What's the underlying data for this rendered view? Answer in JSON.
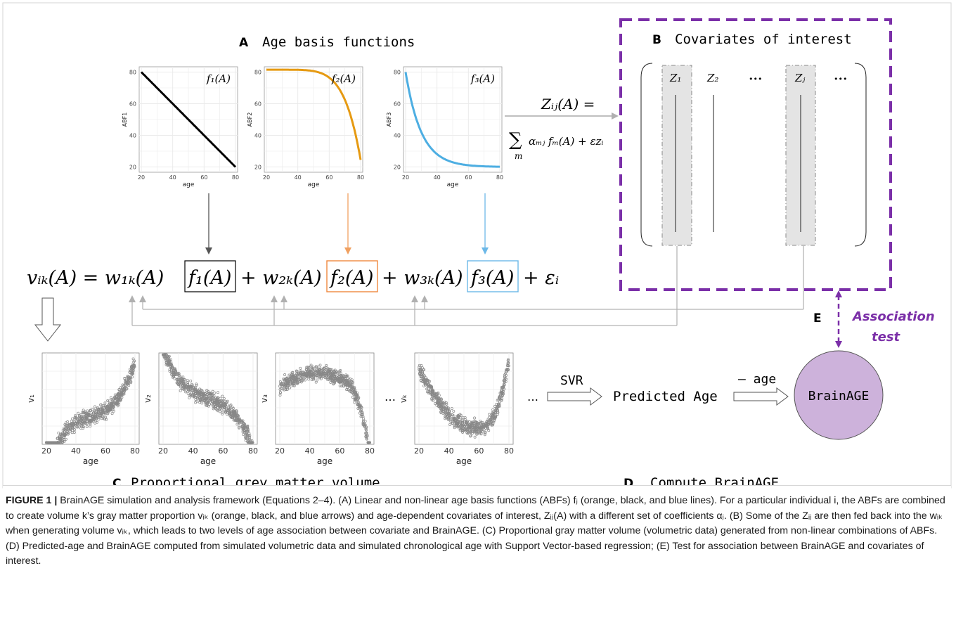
{
  "panel_titles": {
    "A_letter": "A",
    "A_text": "Age basis functions",
    "B_letter": "B",
    "B_text": "Covariates of interest",
    "C_letter": "C",
    "C_text": "Proportional grey matter volume",
    "D_letter": "D",
    "D_text": "Compute BrainAGE",
    "E_letter": "E"
  },
  "abf_plots": [
    {
      "ylabel": "ABF1",
      "fn": "f₁(A)",
      "xlabel": "age",
      "yticks": [
        "20",
        "40",
        "60",
        "80"
      ],
      "xticks": [
        "20",
        "40",
        "60",
        "80"
      ],
      "color": "#000000"
    },
    {
      "ylabel": "ABF2",
      "fn": "f₂(A)",
      "xlabel": "age",
      "yticks": [
        "20",
        "40",
        "60",
        "80"
      ],
      "xticks": [
        "20",
        "40",
        "60",
        "80"
      ],
      "color": "#E69A12"
    },
    {
      "ylabel": "ABF3",
      "fn": "f₃(A)",
      "xlabel": "age",
      "yticks": [
        "20",
        "40",
        "60",
        "80"
      ],
      "xticks": [
        "20",
        "40",
        "60",
        "80"
      ],
      "color": "#4DAEE2"
    }
  ],
  "z_equation": {
    "lhs": "Zᵢⱼ(A) =",
    "rhs_sum": "∑",
    "rhs_sub": "m",
    "rhs_body": "αₘⱼ fₘ(A) + εᴢᵢ"
  },
  "covariates": {
    "labels": [
      "Z₁",
      "Z₂",
      "•••",
      "Zⱼ",
      "•••"
    ]
  },
  "main_equation": {
    "lhs": "vᵢₖ(A) = w₁ₖ(A)",
    "f1": "f₁(A)",
    "mid1": "+ w₂ₖ(A)",
    "f2": "f₂(A)",
    "mid2": "+ w₃ₖ(A)",
    "f3": "f₃(A)",
    "tail": "+ εᵢ"
  },
  "volume_plots": [
    {
      "ylabel": "v₁",
      "xlabel": "age",
      "xticks": [
        "20",
        "40",
        "60",
        "80"
      ]
    },
    {
      "ylabel": "v₂",
      "xlabel": "age",
      "xticks": [
        "20",
        "40",
        "60",
        "80"
      ]
    },
    {
      "ylabel": "v₃",
      "xlabel": "age",
      "xticks": [
        "20",
        "40",
        "60",
        "80"
      ]
    },
    {
      "ylabel": "vₖ",
      "xlabel": "age",
      "xticks": [
        "20",
        "40",
        "60",
        "80"
      ]
    }
  ],
  "ellipsis": "…",
  "flow": {
    "svr": "SVR",
    "predicted": "Predicted Age",
    "minus_age": "– age",
    "brainage": "BrainAGE",
    "assoc_line1": "Association",
    "assoc_line2": "test"
  },
  "caption": {
    "label": "FIGURE 1 |",
    "text": " BrainAGE simulation and analysis framework (Equations 2–4). (A) Linear and non-linear age basis functions (ABFs) fⱼ (orange, black, and blue lines). For a particular individual i, the ABFs are combined to create volume k’s gray matter proportion vᵢₖ (orange, black, and blue arrows) and age-dependent covariates of interest, Zᵢⱼ(A) with a different set of coefficients αⱼ. (B) Some of the Zᵢⱼ are then fed back into the wᵢₖ when generating volume vᵢₖ, which leads to two levels of age association between covariate and BrainAGE. (C) Proportional gray matter volume (volumetric data) generated from non-linear combinations of ABFs. (D) Predicted-age and BrainAGE computed from simulated volumetric data and simulated chronological age with Support Vector-based regression; (E) Test for association between BrainAGE and covariates of interest."
  },
  "colors": {
    "orange": "#E69A12",
    "blue": "#4DAEE2",
    "purple": "#7B2FA8",
    "circle": "#CDB2DB",
    "arrow_gray": "#b5b5b5"
  }
}
